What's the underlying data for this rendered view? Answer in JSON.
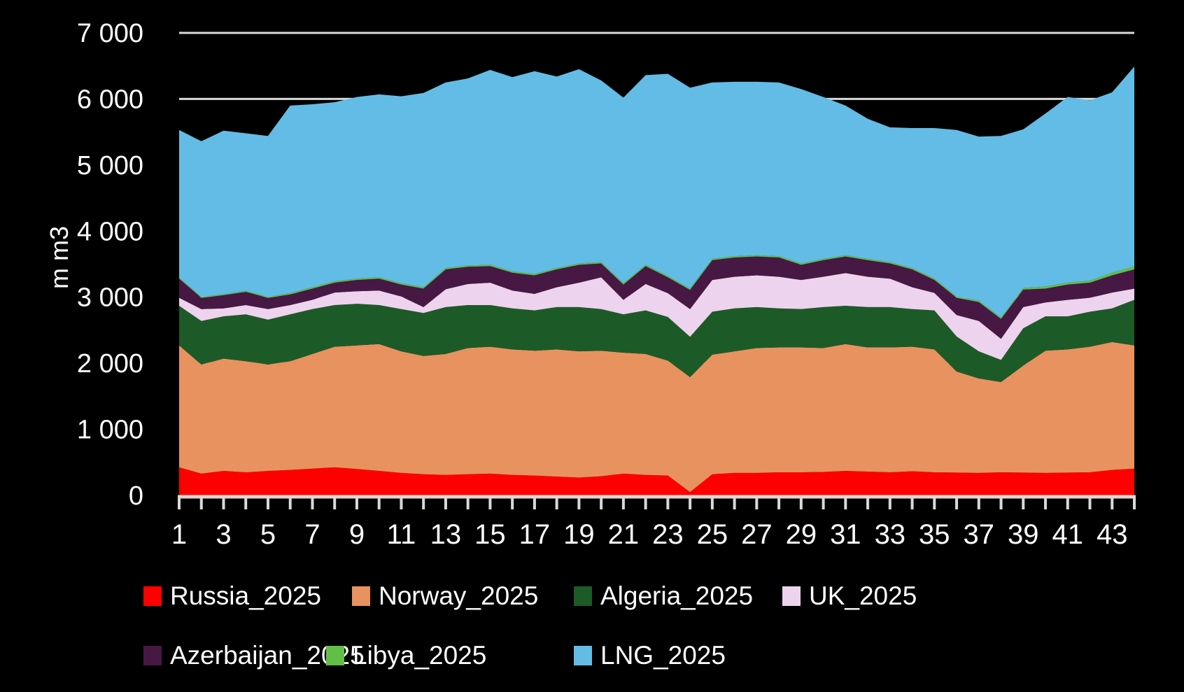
{
  "colors": {
    "background": "#000000",
    "text": "#FFFFFF",
    "gridline": "#D9D9D9",
    "axis": "#D9D9D9"
  },
  "chart_data": {
    "type": "area",
    "stacked": true,
    "title": "",
    "ylabel": "m m3",
    "ylim": [
      0,
      7000
    ],
    "grid": "horizontal",
    "legend_position": "bottom",
    "y_ticks": [
      {
        "value": 0,
        "label": "0"
      },
      {
        "value": 1000,
        "label": "1 000"
      },
      {
        "value": 2000,
        "label": "2 000"
      },
      {
        "value": 3000,
        "label": "3 000"
      },
      {
        "value": 4000,
        "label": "4 000"
      },
      {
        "value": 5000,
        "label": "5 000"
      },
      {
        "value": 6000,
        "label": "6 000"
      },
      {
        "value": 7000,
        "label": "7 000"
      }
    ],
    "x": [
      1,
      2,
      3,
      4,
      5,
      6,
      7,
      8,
      9,
      10,
      11,
      12,
      13,
      14,
      15,
      16,
      17,
      18,
      19,
      20,
      21,
      22,
      23,
      24,
      25,
      26,
      27,
      28,
      29,
      30,
      31,
      32,
      33,
      34,
      35,
      36,
      37,
      38,
      39,
      40,
      41,
      42,
      43,
      44
    ],
    "x_labeled_ticks": [
      1,
      3,
      5,
      7,
      9,
      11,
      13,
      15,
      17,
      19,
      21,
      23,
      25,
      27,
      29,
      31,
      33,
      35,
      37,
      39,
      41,
      43
    ],
    "series": [
      {
        "name": "Russia_2025",
        "color": "#FF0000",
        "values": [
          425,
          330,
          370,
          350,
          370,
          385,
          405,
          425,
          400,
          370,
          340,
          320,
          310,
          320,
          330,
          310,
          300,
          285,
          270,
          290,
          330,
          310,
          300,
          50,
          320,
          340,
          340,
          350,
          350,
          355,
          370,
          360,
          350,
          365,
          350,
          345,
          340,
          350,
          345,
          340,
          345,
          350,
          385,
          405
        ]
      },
      {
        "name": "Norway_2025",
        "color": "#E8925F",
        "values": [
          1845,
          1650,
          1700,
          1680,
          1610,
          1645,
          1735,
          1825,
          1870,
          1920,
          1840,
          1790,
          1830,
          1910,
          1920,
          1900,
          1890,
          1925,
          1910,
          1900,
          1830,
          1830,
          1740,
          1740,
          1810,
          1840,
          1890,
          1890,
          1890,
          1875,
          1920,
          1880,
          1890,
          1885,
          1860,
          1530,
          1430,
          1365,
          1620,
          1850,
          1865,
          1900,
          1935,
          1865
        ]
      },
      {
        "name": "Algeria_2025",
        "color": "#1C5B28",
        "values": [
          600,
          660,
          640,
          710,
          680,
          710,
          680,
          630,
          630,
          590,
          640,
          650,
          710,
          650,
          630,
          620,
          610,
          640,
          670,
          630,
          580,
          660,
          660,
          610,
          650,
          650,
          620,
          590,
          580,
          620,
          580,
          610,
          610,
          570,
          590,
          530,
          410,
          335,
          565,
          520,
          500,
          530,
          510,
          690
        ]
      },
      {
        "name": "UK_2025",
        "color": "#EDD3ED",
        "values": [
          120,
          180,
          120,
          140,
          160,
          140,
          140,
          190,
          190,
          220,
          190,
          90,
          270,
          320,
          340,
          270,
          250,
          300,
          370,
          480,
          220,
          400,
          360,
          420,
          480,
          480,
          480,
          480,
          440,
          460,
          495,
          460,
          430,
          330,
          265,
          325,
          460,
          320,
          320,
          210,
          250,
          210,
          240,
          170
        ]
      },
      {
        "name": "Azerbaijan_2025",
        "color": "#471843",
        "values": [
          290,
          170,
          200,
          200,
          170,
          160,
          170,
          150,
          170,
          180,
          180,
          280,
          300,
          260,
          250,
          270,
          280,
          270,
          270,
          210,
          230,
          270,
          240,
          290,
          300,
          290,
          285,
          290,
          230,
          250,
          250,
          250,
          230,
          270,
          195,
          260,
          285,
          300,
          265,
          210,
          230,
          230,
          260,
          290
        ]
      },
      {
        "name": "Libya_2025",
        "color": "#63BE47",
        "values": [
          15,
          15,
          15,
          15,
          15,
          20,
          20,
          20,
          20,
          20,
          20,
          20,
          20,
          20,
          20,
          20,
          20,
          20,
          20,
          20,
          20,
          20,
          20,
          20,
          20,
          20,
          20,
          20,
          20,
          20,
          20,
          20,
          20,
          20,
          20,
          20,
          20,
          20,
          25,
          30,
          30,
          30,
          40,
          45
        ]
      },
      {
        "name": "LNG_2025",
        "color": "#63BCE5",
        "values": [
          2235,
          2355,
          2475,
          2385,
          2435,
          2840,
          2770,
          2710,
          2750,
          2770,
          2830,
          2940,
          2810,
          2830,
          2950,
          2940,
          3070,
          2900,
          2940,
          2750,
          2810,
          2870,
          3060,
          3040,
          2670,
          2640,
          2625,
          2630,
          2640,
          2450,
          2265,
          2120,
          2040,
          2120,
          2280,
          2520,
          2485,
          2750,
          2400,
          2620,
          2810,
          2730,
          2730,
          3025
        ]
      }
    ]
  }
}
